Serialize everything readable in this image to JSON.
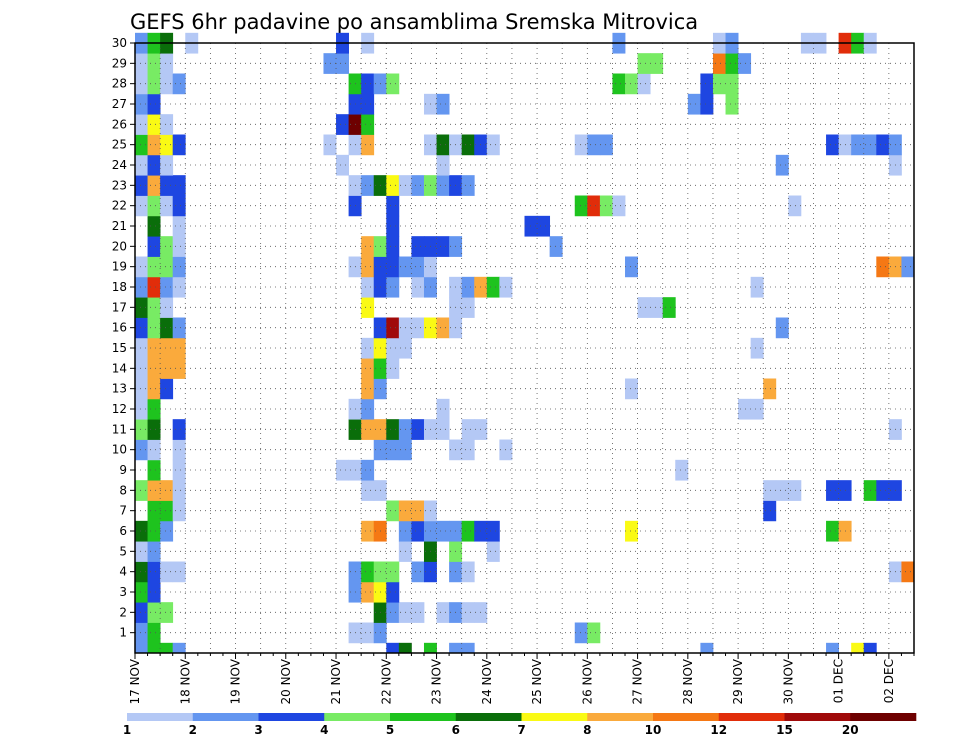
{
  "chart_data": {
    "type": "heatmap",
    "title": "GEFS 6hr padavine po ansamblima Sremska Mitrovica",
    "xlabel": "",
    "ylabel": "",
    "x_tick_labels": [
      "17 NOV",
      "18 NOV",
      "19 NOV",
      "20 NOV",
      "21 NOV",
      "22 NOV",
      "23 NOV",
      "24 NOV",
      "25 NOV",
      "26 NOV",
      "27 NOV",
      "28 NOV",
      "29 NOV",
      "30 NOV",
      "01 DEC",
      "02 DEC"
    ],
    "y_tick_labels": [
      "1",
      "2",
      "3",
      "4",
      "5",
      "6",
      "7",
      "8",
      "9",
      "10",
      "11",
      "12",
      "13",
      "14",
      "15",
      "16",
      "17",
      "18",
      "19",
      "20",
      "21",
      "22",
      "23",
      "24",
      "25",
      "26",
      "27",
      "28",
      "29",
      "30"
    ],
    "x_unit": "6-hour time step from 17 NOV 00",
    "x_range": [
      0,
      62
    ],
    "y_range": [
      0,
      30
    ],
    "grid": true,
    "colorbar": {
      "position": "bottom",
      "tick_labels": [
        "1",
        "2",
        "3",
        "4",
        "5",
        "6",
        "7",
        "8",
        "10",
        "12",
        "15",
        "20"
      ],
      "colors": [
        "#b4c8f5",
        "#6496f0",
        "#1e46e1",
        "#78eb64",
        "#1ec31e",
        "#0a6e0a",
        "#fafa14",
        "#faaa3c",
        "#f57814",
        "#e12d0a",
        "#a00a0a",
        "#6e0000"
      ]
    },
    "cells": [
      [
        0,
        0,
        1
      ],
      [
        1,
        0,
        4
      ],
      [
        2,
        0,
        4
      ],
      [
        3,
        0,
        1
      ],
      [
        20,
        0,
        2
      ],
      [
        21,
        0,
        5
      ],
      [
        23,
        0,
        4
      ],
      [
        25,
        0,
        1
      ],
      [
        26,
        0,
        1
      ],
      [
        45,
        0,
        1
      ],
      [
        55,
        0,
        1
      ],
      [
        57,
        0,
        6
      ],
      [
        58,
        0,
        2
      ],
      [
        0,
        1,
        1
      ],
      [
        1,
        1,
        4
      ],
      [
        17,
        1,
        0
      ],
      [
        18,
        1,
        0
      ],
      [
        19,
        1,
        1
      ],
      [
        35,
        1,
        1
      ],
      [
        36,
        1,
        3
      ],
      [
        0,
        2,
        2
      ],
      [
        1,
        2,
        3
      ],
      [
        2,
        2,
        3
      ],
      [
        19,
        2,
        5
      ],
      [
        20,
        2,
        1
      ],
      [
        21,
        2,
        0
      ],
      [
        22,
        2,
        0
      ],
      [
        24,
        2,
        0
      ],
      [
        25,
        2,
        1
      ],
      [
        26,
        2,
        0
      ],
      [
        27,
        2,
        0
      ],
      [
        0,
        3,
        4
      ],
      [
        1,
        3,
        2
      ],
      [
        17,
        3,
        1
      ],
      [
        18,
        3,
        7
      ],
      [
        19,
        3,
        6
      ],
      [
        20,
        3,
        2
      ],
      [
        0,
        4,
        5
      ],
      [
        1,
        4,
        2
      ],
      [
        2,
        4,
        0
      ],
      [
        3,
        4,
        0
      ],
      [
        17,
        4,
        1
      ],
      [
        18,
        4,
        4
      ],
      [
        19,
        4,
        3
      ],
      [
        20,
        4,
        3
      ],
      [
        22,
        4,
        1
      ],
      [
        23,
        4,
        2
      ],
      [
        25,
        4,
        1
      ],
      [
        26,
        4,
        0
      ],
      [
        60,
        4,
        0
      ],
      [
        61,
        4,
        8
      ],
      [
        0,
        5,
        0
      ],
      [
        1,
        5,
        1
      ],
      [
        21,
        5,
        0
      ],
      [
        23,
        5,
        5
      ],
      [
        25,
        5,
        3
      ],
      [
        28,
        5,
        0
      ],
      [
        0,
        6,
        5
      ],
      [
        1,
        6,
        4
      ],
      [
        2,
        6,
        1
      ],
      [
        18,
        6,
        7
      ],
      [
        19,
        6,
        8
      ],
      [
        21,
        6,
        1
      ],
      [
        22,
        6,
        2
      ],
      [
        23,
        6,
        1
      ],
      [
        24,
        6,
        1
      ],
      [
        25,
        6,
        1
      ],
      [
        26,
        6,
        4
      ],
      [
        27,
        6,
        2
      ],
      [
        28,
        6,
        2
      ],
      [
        39,
        6,
        6
      ],
      [
        55,
        6,
        4
      ],
      [
        56,
        6,
        7
      ],
      [
        1,
        7,
        4
      ],
      [
        2,
        7,
        4
      ],
      [
        3,
        7,
        0
      ],
      [
        20,
        7,
        3
      ],
      [
        21,
        7,
        7
      ],
      [
        22,
        7,
        7
      ],
      [
        23,
        7,
        0
      ],
      [
        50,
        7,
        2
      ],
      [
        0,
        8,
        3
      ],
      [
        1,
        8,
        7
      ],
      [
        2,
        8,
        7
      ],
      [
        3,
        8,
        0
      ],
      [
        18,
        8,
        0
      ],
      [
        19,
        8,
        0
      ],
      [
        50,
        8,
        0
      ],
      [
        51,
        8,
        0
      ],
      [
        52,
        8,
        0
      ],
      [
        55,
        8,
        2
      ],
      [
        56,
        8,
        2
      ],
      [
        58,
        8,
        4
      ],
      [
        59,
        8,
        2
      ],
      [
        60,
        8,
        2
      ],
      [
        1,
        9,
        4
      ],
      [
        3,
        9,
        0
      ],
      [
        16,
        9,
        0
      ],
      [
        17,
        9,
        0
      ],
      [
        18,
        9,
        1
      ],
      [
        43,
        9,
        0
      ],
      [
        0,
        10,
        1
      ],
      [
        1,
        10,
        0
      ],
      [
        3,
        10,
        0
      ],
      [
        19,
        10,
        1
      ],
      [
        20,
        10,
        1
      ],
      [
        21,
        10,
        1
      ],
      [
        25,
        10,
        0
      ],
      [
        26,
        10,
        0
      ],
      [
        29,
        10,
        0
      ],
      [
        0,
        11,
        3
      ],
      [
        1,
        11,
        5
      ],
      [
        3,
        11,
        2
      ],
      [
        17,
        11,
        5
      ],
      [
        18,
        11,
        7
      ],
      [
        19,
        11,
        7
      ],
      [
        20,
        11,
        5
      ],
      [
        21,
        11,
        1
      ],
      [
        22,
        11,
        2
      ],
      [
        23,
        11,
        0
      ],
      [
        24,
        11,
        0
      ],
      [
        26,
        11,
        0
      ],
      [
        27,
        11,
        0
      ],
      [
        60,
        11,
        0
      ],
      [
        0,
        12,
        0
      ],
      [
        1,
        12,
        4
      ],
      [
        17,
        12,
        0
      ],
      [
        18,
        12,
        1
      ],
      [
        24,
        12,
        0
      ],
      [
        48,
        12,
        0
      ],
      [
        49,
        12,
        0
      ],
      [
        0,
        13,
        0
      ],
      [
        1,
        13,
        7
      ],
      [
        2,
        13,
        2
      ],
      [
        18,
        13,
        7
      ],
      [
        19,
        13,
        1
      ],
      [
        39,
        13,
        0
      ],
      [
        50,
        13,
        7
      ],
      [
        0,
        14,
        0
      ],
      [
        1,
        14,
        7
      ],
      [
        2,
        14,
        7
      ],
      [
        3,
        14,
        7
      ],
      [
        18,
        14,
        7
      ],
      [
        19,
        14,
        4
      ],
      [
        20,
        14,
        0
      ],
      [
        0,
        15,
        0
      ],
      [
        1,
        15,
        7
      ],
      [
        2,
        15,
        7
      ],
      [
        3,
        15,
        7
      ],
      [
        18,
        15,
        0
      ],
      [
        19,
        15,
        6
      ],
      [
        20,
        15,
        0
      ],
      [
        21,
        15,
        0
      ],
      [
        49,
        15,
        0
      ],
      [
        0,
        16,
        2
      ],
      [
        1,
        16,
        3
      ],
      [
        2,
        16,
        5
      ],
      [
        3,
        16,
        1
      ],
      [
        19,
        16,
        2
      ],
      [
        20,
        16,
        10
      ],
      [
        21,
        16,
        0
      ],
      [
        22,
        16,
        0
      ],
      [
        23,
        16,
        6
      ],
      [
        24,
        16,
        7
      ],
      [
        25,
        16,
        0
      ],
      [
        51,
        16,
        1
      ],
      [
        0,
        17,
        5
      ],
      [
        1,
        17,
        3
      ],
      [
        2,
        17,
        0
      ],
      [
        18,
        17,
        6
      ],
      [
        25,
        17,
        0
      ],
      [
        26,
        17,
        0
      ],
      [
        40,
        17,
        0
      ],
      [
        41,
        17,
        0
      ],
      [
        42,
        17,
        4
      ],
      [
        0,
        18,
        1
      ],
      [
        1,
        18,
        9
      ],
      [
        2,
        18,
        1
      ],
      [
        3,
        18,
        0
      ],
      [
        18,
        18,
        0
      ],
      [
        19,
        18,
        2
      ],
      [
        20,
        18,
        1
      ],
      [
        22,
        18,
        0
      ],
      [
        23,
        18,
        1
      ],
      [
        25,
        18,
        0
      ],
      [
        26,
        18,
        1
      ],
      [
        27,
        18,
        7
      ],
      [
        28,
        18,
        4
      ],
      [
        29,
        18,
        0
      ],
      [
        49,
        18,
        0
      ],
      [
        0,
        19,
        0
      ],
      [
        1,
        19,
        3
      ],
      [
        2,
        19,
        3
      ],
      [
        3,
        19,
        1
      ],
      [
        17,
        19,
        0
      ],
      [
        18,
        19,
        7
      ],
      [
        19,
        19,
        2
      ],
      [
        20,
        19,
        2
      ],
      [
        21,
        19,
        1
      ],
      [
        22,
        19,
        1
      ],
      [
        23,
        19,
        0
      ],
      [
        39,
        19,
        1
      ],
      [
        59,
        19,
        8
      ],
      [
        60,
        19,
        7
      ],
      [
        61,
        19,
        1
      ],
      [
        1,
        20,
        2
      ],
      [
        2,
        20,
        3
      ],
      [
        3,
        20,
        0
      ],
      [
        18,
        20,
        7
      ],
      [
        19,
        20,
        3
      ],
      [
        20,
        20,
        2
      ],
      [
        22,
        20,
        2
      ],
      [
        23,
        20,
        2
      ],
      [
        24,
        20,
        2
      ],
      [
        25,
        20,
        1
      ],
      [
        33,
        20,
        1
      ],
      [
        1,
        21,
        5
      ],
      [
        3,
        21,
        0
      ],
      [
        20,
        21,
        2
      ],
      [
        31,
        21,
        2
      ],
      [
        32,
        21,
        2
      ],
      [
        0,
        22,
        0
      ],
      [
        1,
        22,
        3
      ],
      [
        2,
        22,
        0
      ],
      [
        3,
        22,
        2
      ],
      [
        17,
        22,
        2
      ],
      [
        20,
        22,
        2
      ],
      [
        35,
        22,
        4
      ],
      [
        36,
        22,
        9
      ],
      [
        37,
        22,
        3
      ],
      [
        38,
        22,
        0
      ],
      [
        52,
        22,
        0
      ],
      [
        0,
        23,
        2
      ],
      [
        1,
        23,
        7
      ],
      [
        2,
        23,
        2
      ],
      [
        3,
        23,
        2
      ],
      [
        17,
        23,
        0
      ],
      [
        18,
        23,
        1
      ],
      [
        19,
        23,
        5
      ],
      [
        20,
        23,
        6
      ],
      [
        21,
        23,
        0
      ],
      [
        22,
        23,
        1
      ],
      [
        23,
        23,
        3
      ],
      [
        24,
        23,
        1
      ],
      [
        25,
        23,
        2
      ],
      [
        26,
        23,
        1
      ],
      [
        0,
        24,
        0
      ],
      [
        1,
        24,
        2
      ],
      [
        2,
        24,
        0
      ],
      [
        16,
        24,
        0
      ],
      [
        24,
        24,
        0
      ],
      [
        51,
        24,
        1
      ],
      [
        60,
        24,
        0
      ],
      [
        0,
        25,
        4
      ],
      [
        1,
        25,
        7
      ],
      [
        2,
        25,
        6
      ],
      [
        3,
        25,
        2
      ],
      [
        15,
        25,
        0
      ],
      [
        17,
        25,
        0
      ],
      [
        18,
        25,
        7
      ],
      [
        23,
        25,
        0
      ],
      [
        24,
        25,
        5
      ],
      [
        25,
        25,
        0
      ],
      [
        26,
        25,
        5
      ],
      [
        27,
        25,
        2
      ],
      [
        28,
        25,
        0
      ],
      [
        35,
        25,
        0
      ],
      [
        36,
        25,
        1
      ],
      [
        37,
        25,
        1
      ],
      [
        55,
        25,
        2
      ],
      [
        56,
        25,
        0
      ],
      [
        57,
        25,
        1
      ],
      [
        58,
        25,
        1
      ],
      [
        59,
        25,
        2
      ],
      [
        60,
        25,
        1
      ],
      [
        0,
        26,
        0
      ],
      [
        1,
        26,
        6
      ],
      [
        2,
        26,
        0
      ],
      [
        16,
        26,
        2
      ],
      [
        17,
        26,
        11
      ],
      [
        18,
        26,
        4
      ],
      [
        0,
        27,
        1
      ],
      [
        1,
        27,
        2
      ],
      [
        17,
        27,
        2
      ],
      [
        18,
        27,
        2
      ],
      [
        23,
        27,
        0
      ],
      [
        24,
        27,
        1
      ],
      [
        44,
        27,
        1
      ],
      [
        45,
        27,
        2
      ],
      [
        47,
        27,
        3
      ],
      [
        0,
        28,
        0
      ],
      [
        1,
        28,
        3
      ],
      [
        2,
        28,
        0
      ],
      [
        3,
        28,
        1
      ],
      [
        17,
        28,
        4
      ],
      [
        18,
        28,
        2
      ],
      [
        19,
        28,
        1
      ],
      [
        20,
        28,
        3
      ],
      [
        38,
        28,
        4
      ],
      [
        39,
        28,
        3
      ],
      [
        40,
        28,
        0
      ],
      [
        45,
        28,
        2
      ],
      [
        46,
        28,
        3
      ],
      [
        47,
        28,
        3
      ],
      [
        0,
        29,
        0
      ],
      [
        1,
        29,
        3
      ],
      [
        2,
        29,
        0
      ],
      [
        15,
        29,
        1
      ],
      [
        16,
        29,
        1
      ],
      [
        40,
        29,
        3
      ],
      [
        41,
        29,
        3
      ],
      [
        46,
        29,
        8
      ],
      [
        47,
        29,
        4
      ],
      [
        48,
        29,
        1
      ],
      [
        0,
        30,
        1
      ],
      [
        1,
        30,
        4
      ],
      [
        2,
        30,
        5
      ],
      [
        4,
        30,
        0
      ],
      [
        16,
        30,
        2
      ],
      [
        18,
        30,
        0
      ],
      [
        38,
        30,
        1
      ],
      [
        46,
        30,
        0
      ],
      [
        47,
        30,
        1
      ],
      [
        53,
        30,
        0
      ],
      [
        54,
        30,
        0
      ],
      [
        56,
        30,
        9
      ],
      [
        57,
        30,
        4
      ],
      [
        58,
        30,
        0
      ]
    ]
  }
}
